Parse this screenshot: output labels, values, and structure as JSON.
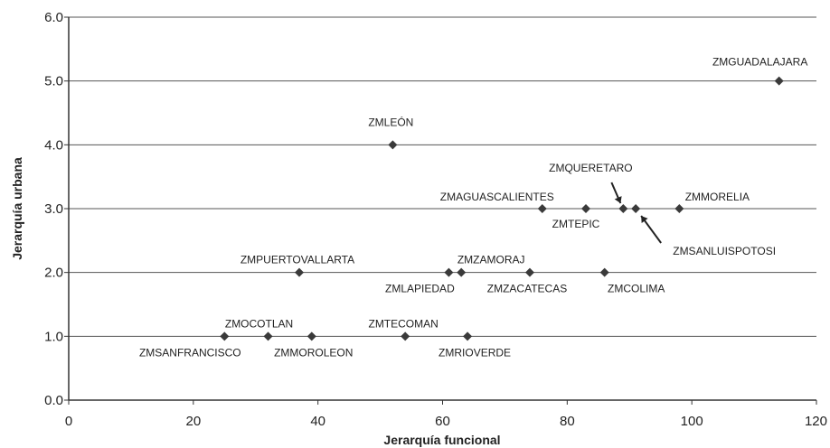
{
  "chart_data": {
    "type": "scatter",
    "xlabel": "Jerarquía funcional",
    "ylabel": "Jerarquía urbana",
    "xlim": [
      0,
      120
    ],
    "ylim": [
      0,
      6
    ],
    "xticks": [
      "0",
      "20",
      "40",
      "60",
      "80",
      "100",
      "120"
    ],
    "yticks": [
      "0.0",
      "1.0",
      "2.0",
      "3.0",
      "4.0",
      "5.0",
      "6.0"
    ],
    "grid": "horizontal",
    "colors": {
      "marker": "#3a3a3a",
      "grid": "#555555",
      "axis": "#333333"
    },
    "points": [
      {
        "label": "ZMSANFRANCISCO",
        "x": 25,
        "y": 1.0
      },
      {
        "label": "ZMOCOTLAN",
        "x": 32,
        "y": 1.0
      },
      {
        "label": "ZMMOROLEON",
        "x": 39,
        "y": 1.0
      },
      {
        "label": "ZMTECOMAN",
        "x": 54,
        "y": 1.0
      },
      {
        "label": "ZMRIOVERDE",
        "x": 64,
        "y": 1.0
      },
      {
        "label": "ZMPUERTOVALLARTA",
        "x": 37,
        "y": 2.0
      },
      {
        "label": "ZMLAPIEDAD",
        "x": 61,
        "y": 2.0
      },
      {
        "label": "ZMZAMORAJ",
        "x": 63,
        "y": 2.0
      },
      {
        "label": "ZMZACATECAS",
        "x": 74,
        "y": 2.0
      },
      {
        "label": "ZMCOLIMA",
        "x": 86,
        "y": 2.0
      },
      {
        "label": "ZMAGUASCALIENTES",
        "x": 76,
        "y": 3.0
      },
      {
        "label": "ZMTEPIC",
        "x": 83,
        "y": 3.0
      },
      {
        "label": "ZMQUERETARO",
        "x": 89,
        "y": 3.0
      },
      {
        "label": "ZMSANLUISPOTOSI",
        "x": 91,
        "y": 3.0
      },
      {
        "label": "ZMMORELIA",
        "x": 98,
        "y": 3.0
      },
      {
        "label": "ZMLEÓN",
        "x": 52,
        "y": 4.0
      },
      {
        "label": "ZMGUADALAJARA",
        "x": 114,
        "y": 5.0
      }
    ]
  }
}
